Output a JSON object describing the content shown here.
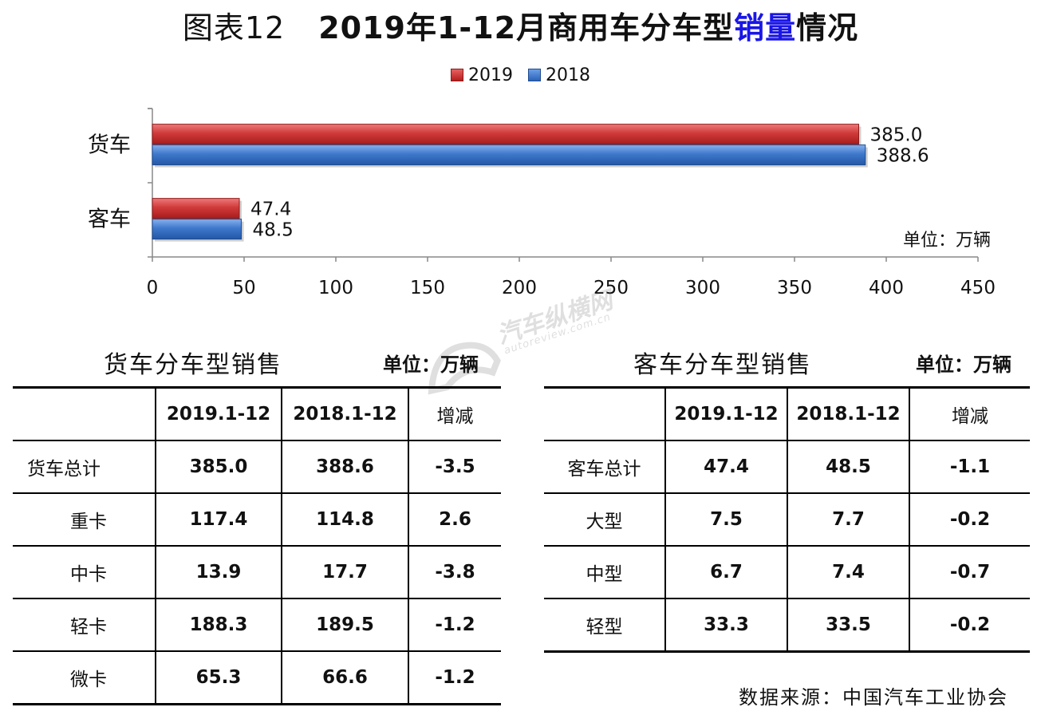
{
  "title": {
    "prefix": "图表12",
    "main": "2019年1-12月商用车分车型",
    "accent": "销量",
    "suffix": "情况"
  },
  "chart_data": {
    "type": "bar",
    "orientation": "horizontal",
    "categories": [
      "货车",
      "客车"
    ],
    "series": [
      {
        "name": "2019",
        "values": [
          385.0,
          47.4
        ],
        "color": "#c83232"
      },
      {
        "name": "2018",
        "values": [
          388.6,
          48.5
        ],
        "color": "#3a73c8"
      }
    ],
    "data_labels": [
      [
        "385.0",
        "47.4"
      ],
      [
        "388.6",
        "48.5"
      ]
    ],
    "xlim": [
      0,
      450
    ],
    "xticks": [
      "0",
      "50",
      "100",
      "150",
      "200",
      "250",
      "300",
      "350",
      "400",
      "450"
    ],
    "unit_note": "单位：万辆",
    "legend_position": "top-center",
    "grid": false
  },
  "truck_table": {
    "title": "货车分车型销售",
    "unit": "单位：万辆",
    "headers": [
      "",
      "2019.1-12",
      "2018.1-12",
      "增减"
    ],
    "rows": [
      [
        "货车总计",
        "385.0",
        "388.6",
        "-3.5"
      ],
      [
        "重卡",
        "117.4",
        "114.8",
        "2.6"
      ],
      [
        "中卡",
        "13.9",
        "17.7",
        "-3.8"
      ],
      [
        "轻卡",
        "188.3",
        "189.5",
        "-1.2"
      ],
      [
        "微卡",
        "65.3",
        "66.6",
        "-1.2"
      ]
    ]
  },
  "bus_table": {
    "title": "客车分车型销售",
    "unit": "单位：万辆",
    "headers": [
      "",
      "2019.1-12",
      "2018.1-12",
      "增减"
    ],
    "rows": [
      [
        "客车总计",
        "47.4",
        "48.5",
        "-1.1"
      ],
      [
        "大型",
        "7.5",
        "7.7",
        "-0.2"
      ],
      [
        "中型",
        "6.7",
        "7.4",
        "-0.7"
      ],
      [
        "轻型",
        "33.3",
        "33.5",
        "-0.2"
      ]
    ]
  },
  "source": "数据来源：中国汽车工业协会",
  "watermark": {
    "main": "汽车纵横网",
    "sub": "autoreview.com.cn"
  }
}
